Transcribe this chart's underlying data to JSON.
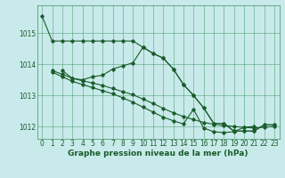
{
  "bg_color": "#c8eaea",
  "grid_color": "#3d8f5f",
  "line_color": "#1a5c2a",
  "text_color": "#1a5c2a",
  "xlabel": "Graphe pression niveau de la mer (hPa)",
  "xlim": [
    -0.5,
    23.5
  ],
  "ylim": [
    1011.6,
    1015.9
  ],
  "yticks": [
    1012,
    1013,
    1014,
    1015
  ],
  "xticks": [
    0,
    1,
    2,
    3,
    4,
    5,
    6,
    7,
    8,
    9,
    10,
    11,
    12,
    13,
    14,
    15,
    16,
    17,
    18,
    19,
    20,
    21,
    22,
    23
  ],
  "s1_x": [
    0,
    1,
    2,
    3,
    4,
    5,
    6,
    7,
    8,
    9,
    10,
    11,
    12,
    13,
    14,
    15,
    16,
    17,
    18,
    19,
    20,
    21,
    22,
    23
  ],
  "s1_y": [
    1015.55,
    1014.75,
    1014.75,
    1014.75,
    1014.75,
    1014.75,
    1014.75,
    1014.75,
    1014.75,
    1014.75,
    1014.55,
    1014.35,
    1014.2,
    1013.85,
    1013.35,
    1013.0,
    1012.6,
    1012.1,
    1012.1,
    1011.85,
    1011.85,
    1011.85,
    1012.05,
    1012.05
  ],
  "s2_x": [
    2,
    3,
    4,
    5,
    6,
    7,
    8,
    9,
    10,
    11,
    12,
    13,
    14,
    15,
    16,
    17,
    18,
    19,
    20,
    21,
    22,
    23
  ],
  "s2_y": [
    1013.8,
    1013.55,
    1013.5,
    1013.6,
    1013.65,
    1013.85,
    1013.95,
    1014.05,
    1014.55,
    1014.35,
    1014.2,
    1013.85,
    1013.35,
    1013.0,
    1012.6,
    1012.1,
    1012.1,
    1011.85,
    1011.85,
    1011.85,
    1012.05,
    1012.05
  ],
  "s3_x": [
    1,
    2,
    3,
    4,
    5,
    6,
    7,
    8,
    9,
    10,
    11,
    12,
    13,
    14,
    15,
    16,
    17,
    18,
    19,
    20,
    21,
    22,
    23
  ],
  "s3_y": [
    1013.8,
    1013.68,
    1013.55,
    1013.47,
    1013.4,
    1013.32,
    1013.22,
    1013.12,
    1013.02,
    1012.88,
    1012.74,
    1012.58,
    1012.44,
    1012.32,
    1012.22,
    1012.13,
    1012.07,
    1012.03,
    1012.0,
    1011.97,
    1011.95,
    1011.97,
    1012.0
  ],
  "s4_x": [
    1,
    2,
    3,
    4,
    5,
    6,
    7,
    8,
    9,
    10,
    11,
    12,
    13,
    14,
    15,
    16,
    17,
    18,
    19,
    20,
    21
  ],
  "s4_y": [
    1013.75,
    1013.6,
    1013.45,
    1013.35,
    1013.25,
    1013.15,
    1013.05,
    1012.92,
    1012.78,
    1012.62,
    1012.46,
    1012.3,
    1012.18,
    1012.08,
    1012.55,
    1011.95,
    1011.83,
    1011.8,
    1011.83,
    1011.97,
    1012.0
  ]
}
